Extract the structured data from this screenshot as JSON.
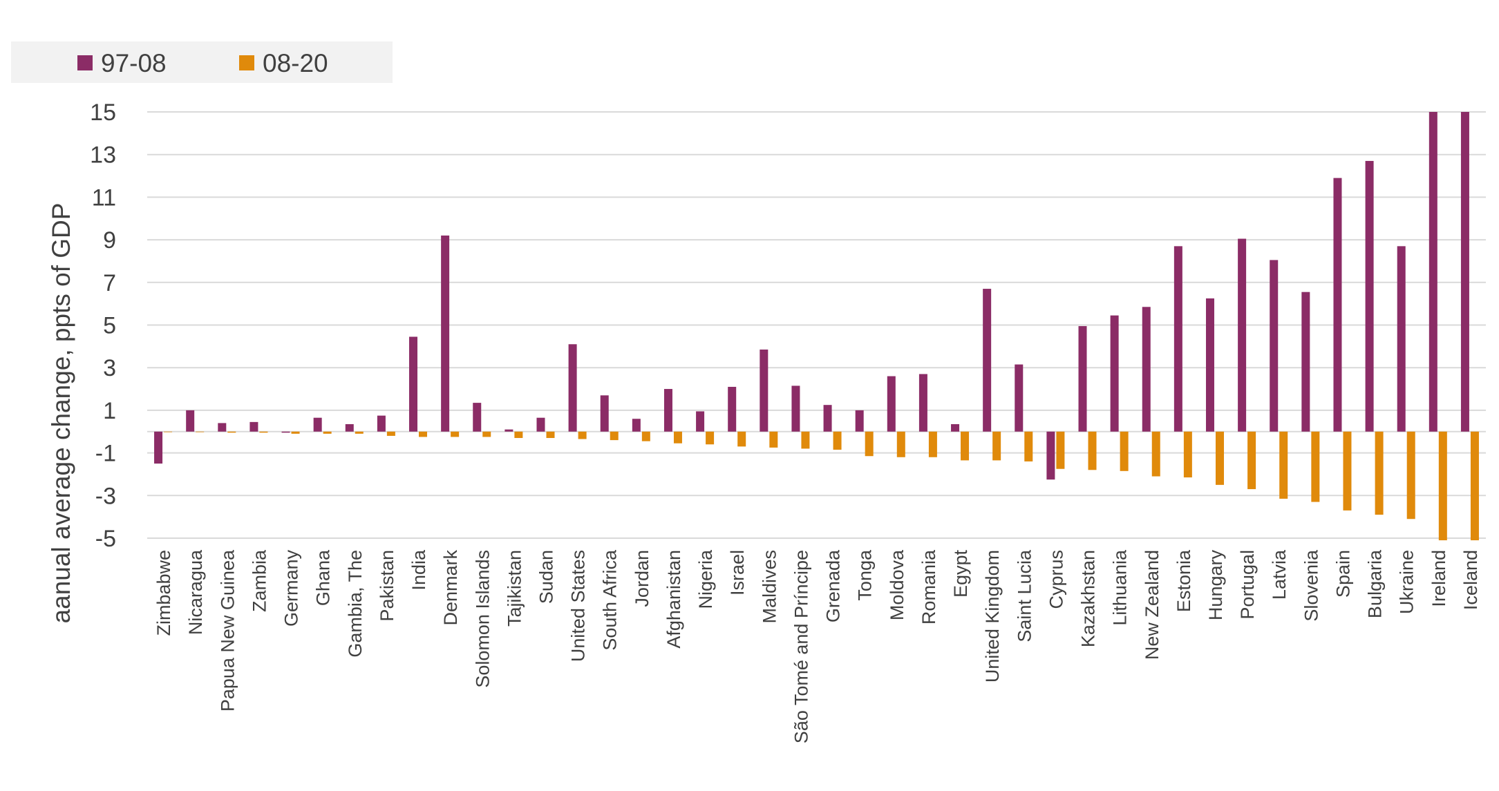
{
  "chart_data": {
    "type": "bar",
    "ylabel": "aanual average change, ppts of GDP",
    "ylim": [
      -5,
      15
    ],
    "yticks": [
      15,
      13,
      11,
      9,
      7,
      5,
      3,
      1,
      -1,
      -3,
      -5
    ],
    "grid": true,
    "legend_position": "top-left",
    "categories": [
      "Zimbabwe",
      "Nicaragua",
      "Papua New Guinea",
      "Zambia",
      "Germany",
      "Ghana",
      "Gambia, The",
      "Pakistan",
      "India",
      "Denmark",
      "Solomon Islands",
      "Tajikistan",
      "Sudan",
      "United States",
      "South Africa",
      "Jordan",
      "Afghanistan",
      "Nigeria",
      "Israel",
      "Maldives",
      "São Tomé and Príncipe",
      "Grenada",
      "Tonga",
      "Moldova",
      "Romania",
      "Egypt",
      "United Kingdom",
      "Saint Lucia",
      "Cyprus",
      "Kazakhstan",
      "Lithuania",
      "New Zealand",
      "Estonia",
      "Hungary",
      "Portugal",
      "Latvia",
      "Slovenia",
      "Spain",
      "Bulgaria",
      "Ukraine",
      "Ireland",
      "Iceland"
    ],
    "series": [
      {
        "name": "97-08",
        "color": "#8b2c66",
        "values": [
          -1.5,
          1.0,
          0.4,
          0.45,
          -0.05,
          0.65,
          0.35,
          0.75,
          4.45,
          9.2,
          1.35,
          0.1,
          0.65,
          4.1,
          1.7,
          0.6,
          2.0,
          0.95,
          2.1,
          3.85,
          2.15,
          1.25,
          1.0,
          2.6,
          2.7,
          0.35,
          6.7,
          3.15,
          -2.25,
          4.95,
          5.45,
          5.85,
          8.7,
          6.25,
          9.05,
          8.05,
          6.55,
          11.9,
          12.7,
          8.7,
          15.0,
          15.0
        ]
      },
      {
        "name": "08-20",
        "color": "#e08a0b",
        "values": [
          0.0,
          0.0,
          -0.05,
          -0.05,
          -0.1,
          -0.1,
          -0.1,
          -0.2,
          -0.25,
          -0.25,
          -0.25,
          -0.3,
          -0.3,
          -0.35,
          -0.4,
          -0.45,
          -0.55,
          -0.6,
          -0.7,
          -0.75,
          -0.8,
          -0.85,
          -1.15,
          -1.2,
          -1.2,
          -1.35,
          -1.35,
          -1.4,
          -1.75,
          -1.8,
          -1.85,
          -2.1,
          -2.15,
          -2.5,
          -2.7,
          -3.15,
          -3.3,
          -3.7,
          -3.9,
          -4.1,
          -5.1,
          -5.1
        ]
      }
    ]
  }
}
